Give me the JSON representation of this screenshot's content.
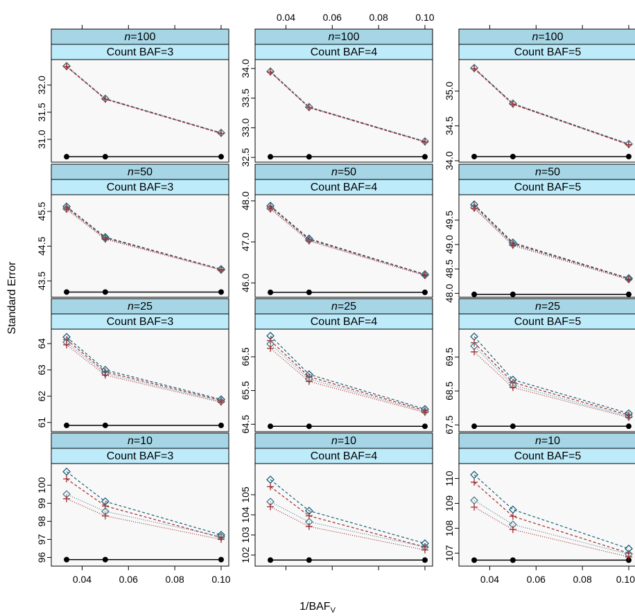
{
  "chart_data": {
    "type": "line",
    "xlabel": "1/BAF",
    "xlabel_subscript": "V",
    "ylabel": "Standard Error",
    "x": [
      0.0333,
      0.05,
      0.1
    ],
    "xlim": [
      0.0267,
      0.1033
    ],
    "x_ticks": [
      "0.04",
      "0.06",
      "0.08",
      "0.10"
    ],
    "x_tick_values": [
      0.04,
      0.06,
      0.08,
      0.1
    ],
    "series_styles": [
      {
        "color": "#1a5f7a",
        "dash": "4,3",
        "marker": "diamond"
      },
      {
        "color": "#a0282a",
        "dash": "4,3",
        "marker": "plus"
      },
      {
        "color": "#4a7a8a",
        "dash": "1,2",
        "marker": "diamond"
      },
      {
        "color": "#a0282a",
        "dash": "1,2",
        "marker": "plus"
      }
    ],
    "reference_line_color": "#000000",
    "panels": [
      {
        "n_label": "n=100",
        "baf_label": "Count BAF=3",
        "ylim": [
          30.58,
          32.47
        ],
        "y_ticks": [
          "31.0",
          "31.5",
          "32.0"
        ],
        "y_tick_values": [
          31.0,
          31.5,
          32.0
        ],
        "baseline": 30.68,
        "series": [
          [
            32.35,
            31.75,
            31.12
          ],
          [
            32.34,
            31.74,
            31.11
          ],
          [
            32.35,
            31.75,
            31.12
          ],
          [
            32.34,
            31.74,
            31.11
          ]
        ]
      },
      {
        "n_label": "n=100",
        "baf_label": "Count BAF=4",
        "ylim": [
          32.42,
          34.15
        ],
        "y_ticks": [
          "32.5",
          "33.0",
          "33.5",
          "34.0"
        ],
        "y_tick_values": [
          32.5,
          33.0,
          33.5,
          34.0
        ],
        "baseline": 32.51,
        "series": [
          [
            33.95,
            33.35,
            32.77
          ],
          [
            33.94,
            33.34,
            32.76
          ],
          [
            33.95,
            33.35,
            32.77
          ],
          [
            33.94,
            33.34,
            32.76
          ]
        ]
      },
      {
        "n_label": "n=100",
        "baf_label": "Count BAF=5",
        "ylim": [
          33.98,
          35.45
        ],
        "y_ticks": [
          "34.0",
          "34.5",
          "35.0"
        ],
        "y_tick_values": [
          34.0,
          34.5,
          35.0
        ],
        "baseline": 34.06,
        "series": [
          [
            35.33,
            34.82,
            34.24
          ],
          [
            35.32,
            34.81,
            34.23
          ],
          [
            35.33,
            34.82,
            34.24
          ],
          [
            35.32,
            34.81,
            34.23
          ]
        ]
      },
      {
        "n_label": "n=50",
        "baf_label": "Count BAF=3",
        "ylim": [
          43.03,
          45.98
        ],
        "y_ticks": [
          "43.5",
          "44.5",
          "45.5"
        ],
        "y_tick_values": [
          43.5,
          44.5,
          45.5
        ],
        "baseline": 43.18,
        "series": [
          [
            45.64,
            44.76,
            43.84
          ],
          [
            45.62,
            44.74,
            43.83
          ],
          [
            45.58,
            44.72,
            43.82
          ],
          [
            45.56,
            44.7,
            43.81
          ]
        ]
      },
      {
        "n_label": "n=50",
        "baf_label": "Count BAF=4",
        "ylim": [
          45.65,
          48.15
        ],
        "y_ticks": [
          "46.0",
          "47.0",
          "48.0"
        ],
        "y_tick_values": [
          46.0,
          47.0,
          48.0
        ],
        "baseline": 45.77,
        "series": [
          [
            47.88,
            47.08,
            46.21
          ],
          [
            47.86,
            47.06,
            46.2
          ],
          [
            47.82,
            47.04,
            46.19
          ],
          [
            47.8,
            47.02,
            46.18
          ]
        ]
      },
      {
        "n_label": "n=50",
        "baf_label": "Count BAF=5",
        "ylim": [
          47.92,
          50.02
        ],
        "y_ticks": [
          "48.0",
          "48.5",
          "49.0",
          "49.5"
        ],
        "y_tick_values": [
          48.0,
          48.5,
          49.0,
          49.5
        ],
        "baseline": 47.98,
        "series": [
          [
            49.82,
            49.04,
            48.31
          ],
          [
            49.8,
            49.02,
            48.3
          ],
          [
            49.76,
            49.0,
            48.29
          ],
          [
            49.74,
            48.98,
            48.28
          ]
        ]
      },
      {
        "n_label": "n=25",
        "baf_label": "Count BAF=3",
        "ylim": [
          60.65,
          64.55
        ],
        "y_ticks": [
          "61",
          "62",
          "63",
          "64"
        ],
        "y_tick_values": [
          61,
          62,
          63,
          64
        ],
        "baseline": 60.89,
        "series": [
          [
            64.25,
            63.0,
            61.88
          ],
          [
            64.15,
            62.93,
            61.84
          ],
          [
            64.05,
            62.87,
            61.8
          ],
          [
            63.95,
            62.8,
            61.77
          ]
        ]
      },
      {
        "n_label": "n=25",
        "baf_label": "Count BAF=4",
        "ylim": [
          64.28,
          67.32
        ],
        "y_ticks": [
          "64.5",
          "65.5",
          "66.5"
        ],
        "y_tick_values": [
          64.5,
          65.5,
          66.5
        ],
        "baseline": 64.44,
        "series": [
          [
            67.12,
            65.98,
            64.95
          ],
          [
            66.98,
            65.91,
            64.91
          ],
          [
            66.88,
            65.84,
            64.88
          ],
          [
            66.75,
            65.77,
            64.85
          ]
        ]
      },
      {
        "n_label": "n=25",
        "baf_label": "Count BAF=5",
        "ylim": [
          67.3,
          70.32
        ],
        "y_ticks": [
          "67.5",
          "68.5",
          "69.5"
        ],
        "y_tick_values": [
          67.5,
          68.5,
          69.5
        ],
        "baseline": 67.46,
        "series": [
          [
            70.1,
            68.83,
            67.84
          ],
          [
            69.92,
            68.75,
            67.79
          ],
          [
            69.82,
            68.67,
            67.75
          ],
          [
            69.65,
            68.6,
            67.72
          ]
        ]
      },
      {
        "n_label": "n=10",
        "baf_label": "Count BAF=3",
        "ylim": [
          95.52,
          101.2
        ],
        "y_ticks": [
          "96",
          "97",
          "98",
          "99",
          "100"
        ],
        "y_tick_values": [
          96,
          97,
          98,
          99,
          100
        ],
        "baseline": 95.88,
        "series": [
          [
            100.75,
            99.1,
            97.25
          ],
          [
            100.35,
            98.85,
            97.1
          ],
          [
            99.5,
            98.55,
            97.15
          ],
          [
            99.25,
            98.3,
            97.0
          ]
        ]
      },
      {
        "n_label": "n=10",
        "baf_label": "Count BAF=4",
        "ylim": [
          101.45,
          106.55
        ],
        "y_ticks": [
          "102",
          "103",
          "104",
          "105"
        ],
        "y_tick_values": [
          102,
          103,
          104,
          105
        ],
        "baseline": 101.75,
        "series": [
          [
            105.75,
            104.2,
            102.58
          ],
          [
            105.4,
            103.95,
            102.4
          ],
          [
            104.65,
            103.65,
            102.4
          ],
          [
            104.4,
            103.42,
            102.25
          ]
        ]
      },
      {
        "n_label": "n=10",
        "baf_label": "Count BAF=5",
        "ylim": [
          106.48,
          110.6
        ],
        "y_ticks": [
          "107",
          "108",
          "109",
          "110"
        ],
        "y_tick_values": [
          107,
          108,
          109,
          110
        ],
        "baseline": 106.72,
        "series": [
          [
            110.15,
            108.75,
            107.18
          ],
          [
            109.85,
            108.48,
            107.0
          ],
          [
            109.12,
            108.15,
            106.96
          ],
          [
            108.85,
            107.95,
            106.85
          ]
        ]
      }
    ]
  }
}
